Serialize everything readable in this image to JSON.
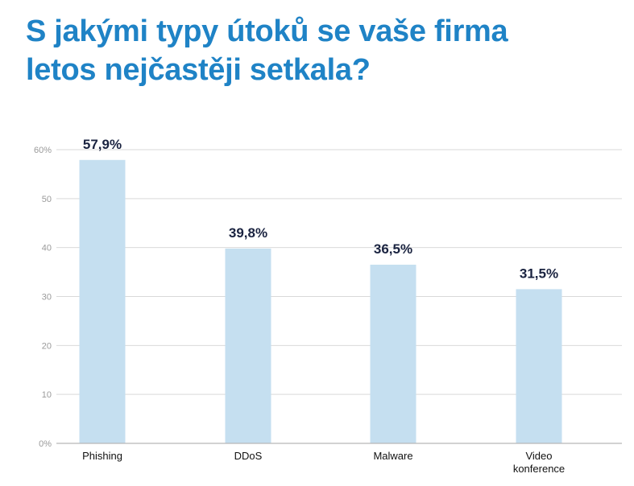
{
  "page": {
    "title_lines": [
      "S jakými typy útoků se vaše firma",
      "letos nejčastěji setkala?"
    ]
  },
  "colors": {
    "title": "#1f83c6",
    "bar": "#c5dff0",
    "value_label": "#1a2340",
    "tick_label": "#9a9a9a",
    "grid": "#d9d9d9",
    "axis": "#b8b8b8"
  },
  "chart_data": {
    "type": "bar",
    "title": "S jakými typy útoků se vaše firma letos nejčastěji setkala?",
    "categories": [
      [
        "Phishing"
      ],
      [
        "DDoS"
      ],
      [
        "Malware"
      ],
      [
        "Video",
        "konference"
      ]
    ],
    "values": [
      57.9,
      39.8,
      36.5,
      31.5
    ],
    "value_labels": [
      "57,9%",
      "39,8%",
      "36,5%",
      "31,5%"
    ],
    "yticks": [
      0,
      10,
      20,
      30,
      40,
      50,
      60
    ],
    "ytick_labels": [
      "0%",
      "10",
      "20",
      "30",
      "40",
      "50",
      "60%"
    ],
    "ylim": [
      0,
      60
    ],
    "xlabel": "",
    "ylabel": "",
    "grid": true,
    "legend": "none"
  }
}
